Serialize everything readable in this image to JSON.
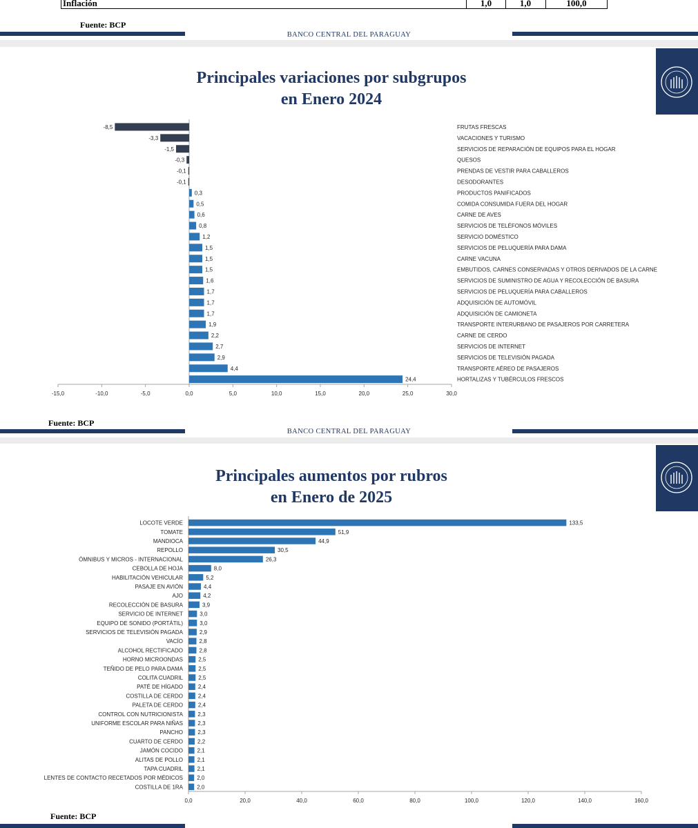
{
  "top_table": {
    "row_label": "Inflación",
    "values": [
      "1,0",
      "1,0",
      "100,0"
    ]
  },
  "footer": {
    "source": "Fuente: BCP",
    "bank": "BANCO CENTRAL DEL PARAGUAY"
  },
  "colors": {
    "brand_navy": "#1f3864",
    "bar_positive": "#2e75b6",
    "bar_negative": "#333f50"
  },
  "chart_data": [
    {
      "type": "bar",
      "orientation": "horizontal",
      "title": "Principales variaciones por subgrupos en Enero 2024",
      "title_lines": [
        "Principales variaciones por subgrupos",
        "en Enero 2024"
      ],
      "categories": [
        "FRUTAS FRESCAS",
        "VACACIONES Y TURISMO",
        "SERVICIOS DE REPARACIÓN DE EQUIPOS PARA EL HOGAR",
        "QUESOS",
        "PRENDAS DE VESTIR PARA CABALLEROS",
        "DESODORANTES",
        "PRODUCTOS PANIFICADOS",
        "COMIDA CONSUMIDA FUERA DEL HOGAR",
        "CARNE DE AVES",
        "SERVICIOS DE TELÉFONOS MÓVILES",
        "SERVICIO DOMÉSTICO",
        "SERVICIOS DE PELUQUERÍA PARA DAMA",
        "CARNE VACUNA",
        "EMBUTIDOS, CARNES CONSERVADAS Y OTROS DERIVADOS DE LA CARNE",
        "SERVICIOS DE SUMINISTRO DE AGUA Y RECOLECCIÓN DE BASURA",
        "SERVICIOS DE PELUQUERÍA PARA CABALLEROS",
        "ADQUISICIÓN DE AUTOMÓVIL",
        "ADQUISICIÓN DE CAMIONETA",
        "TRANSPORTE INTERURBANO DE PASAJEROS POR CARRETERA",
        "CARNE DE CERDO",
        "SERVICIOS DE INTERNET",
        "SERVICIOS DE TELEVISIÓN PAGADA",
        "TRANSPORTE AÉREO DE PASAJEROS",
        "HORTALIZAS Y TUBÉRCULOS FRESCOS"
      ],
      "values": [
        -8.5,
        -3.3,
        -1.5,
        -0.3,
        -0.1,
        -0.1,
        0.3,
        0.5,
        0.6,
        0.8,
        1.2,
        1.5,
        1.5,
        1.5,
        1.6,
        1.7,
        1.7,
        1.7,
        1.9,
        2.2,
        2.7,
        2.9,
        4.4,
        24.4
      ],
      "value_labels": [
        "-8,5",
        "-3,3",
        "-1,5",
        "-0,3",
        "-0,1",
        "-0,1",
        "0,3",
        "0,5",
        "0,6",
        "0,8",
        "1,2",
        "1,5",
        "1,5",
        "1,5",
        "1,6",
        "1,7",
        "1,7",
        "1,7",
        "1,9",
        "2,2",
        "2,7",
        "2,9",
        "4,4",
        "24,4"
      ],
      "xlim": [
        -15,
        30
      ],
      "xticks": [
        -15,
        -10,
        -5,
        0,
        5,
        10,
        15,
        20,
        25,
        30
      ],
      "xtick_labels": [
        "-15,0",
        "-10,0",
        "-5,0",
        "0,0",
        "5,0",
        "10,0",
        "15,0",
        "20,0",
        "25,0",
        "30,0"
      ],
      "category_labels_position": "right",
      "grid": false,
      "legend": "none"
    },
    {
      "type": "bar",
      "orientation": "horizontal",
      "title": "Principales aumentos por rubros en Enero de 2025",
      "title_lines": [
        "Principales aumentos por rubros",
        "en Enero de 2025"
      ],
      "categories": [
        "LOCOTE VERDE",
        "TOMATE",
        "MANDIOCA",
        "REPOLLO",
        "ÓMNIBUS Y MICROS - INTERNACIONAL",
        "CEBOLLA DE HOJA",
        "HABILITACIÓN VEHICULAR",
        "PASAJE EN AVIÓN",
        "AJO",
        "RECOLECCIÓN DE BASURA",
        "SERVICIO DE INTERNET",
        "EQUIPO DE SONIDO (PORTÁTIL)",
        "SERVICIOS DE TELEVISIÓN PAGADA",
        "VACÍO",
        "ALCOHOL RECTIFICADO",
        "HORNO MICROONDAS",
        "TEÑIDO DE PELO PARA DAMA",
        "COLITA CUADRIL",
        "PATÉ DE HÍGADO",
        "COSTILLA DE CERDO",
        "PALETA DE CERDO",
        "CONTROL CON NUTRICIONISTA",
        "UNIFORME ESCOLAR PARA NIÑAS",
        "PANCHO",
        "CUARTO DE CERDO",
        "JAMÓN COCIDO",
        "ALITAS DE POLLO",
        "TAPA CUADRIL",
        "LENTES DE CONTACTO RECETADOS POR MÉDICOS",
        "COSTILLA DE 1RA"
      ],
      "values": [
        133.5,
        51.9,
        44.9,
        30.5,
        26.3,
        8.0,
        5.2,
        4.4,
        4.2,
        3.9,
        3.0,
        3.0,
        2.9,
        2.8,
        2.8,
        2.5,
        2.5,
        2.5,
        2.4,
        2.4,
        2.4,
        2.3,
        2.3,
        2.3,
        2.2,
        2.1,
        2.1,
        2.1,
        2.0,
        2.0
      ],
      "value_labels": [
        "133,5",
        "51,9",
        "44,9",
        "30,5",
        "26,3",
        "8,0",
        "5,2",
        "4,4",
        "4,2",
        "3,9",
        "3,0",
        "3,0",
        "2,9",
        "2,8",
        "2,8",
        "2,5",
        "2,5",
        "2,5",
        "2,4",
        "2,4",
        "2,4",
        "2,3",
        "2,3",
        "2,3",
        "2,2",
        "2,1",
        "2,1",
        "2,1",
        "2,0",
        "2,0"
      ],
      "xlim": [
        0,
        160
      ],
      "xticks": [
        0,
        20,
        40,
        60,
        80,
        100,
        120,
        140,
        160
      ],
      "xtick_labels": [
        "0,0",
        "20,0",
        "40,0",
        "60,0",
        "80,0",
        "100,0",
        "120,0",
        "140,0",
        "160,0"
      ],
      "category_labels_position": "left",
      "grid": false,
      "legend": "none"
    }
  ]
}
